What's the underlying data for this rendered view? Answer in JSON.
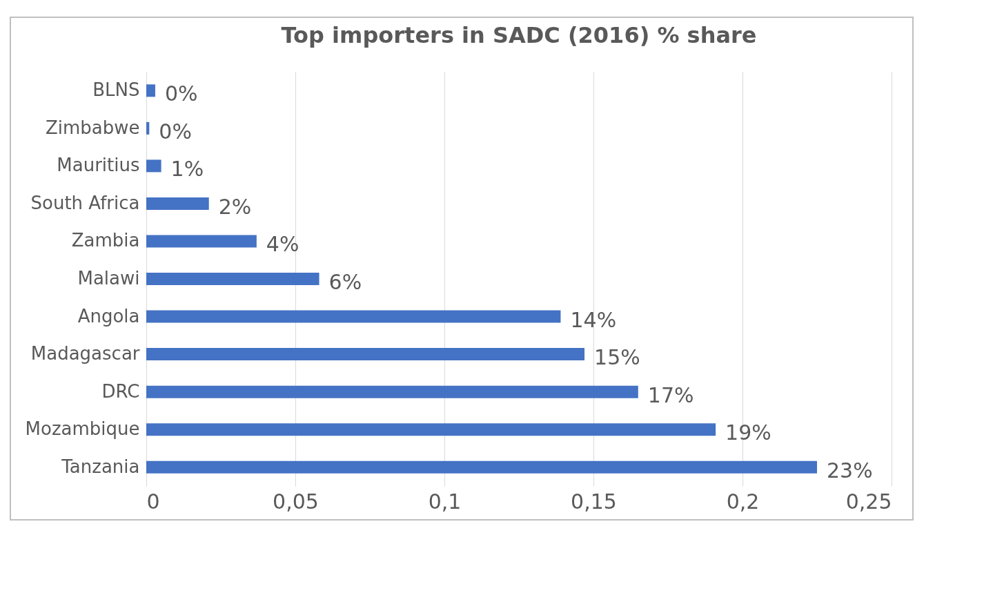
{
  "chart_data": {
    "type": "bar",
    "orientation": "horizontal",
    "title": "Top importers in SADC (2016) % share",
    "categories": [
      "BLNS",
      "Zimbabwe",
      "Mauritius",
      "South Africa",
      "Zambia",
      "Malawi",
      "Angola",
      "Madagascar",
      "DRC",
      "Mozambique",
      "Tanzania"
    ],
    "values": [
      0.003,
      0.001,
      0.005,
      0.021,
      0.037,
      0.058,
      0.139,
      0.147,
      0.165,
      0.191,
      0.225
    ],
    "value_labels": [
      "0%",
      "0%",
      "1%",
      "2%",
      "4%",
      "6%",
      "14%",
      "15%",
      "17%",
      "19%",
      "23%"
    ],
    "color": "#4472c4",
    "xlim": [
      0,
      0.25
    ],
    "xticks": [
      0,
      {
        "value": 0.05,
        "label": "0,05"
      },
      {
        "value": 0.1,
        "label": "0,1"
      },
      {
        "value": 0.15,
        "label": "0,15"
      },
      {
        "value": 0.2,
        "label": "0,2"
      },
      {
        "value": 0.25,
        "label": "0,25"
      }
    ],
    "grid": "x"
  }
}
